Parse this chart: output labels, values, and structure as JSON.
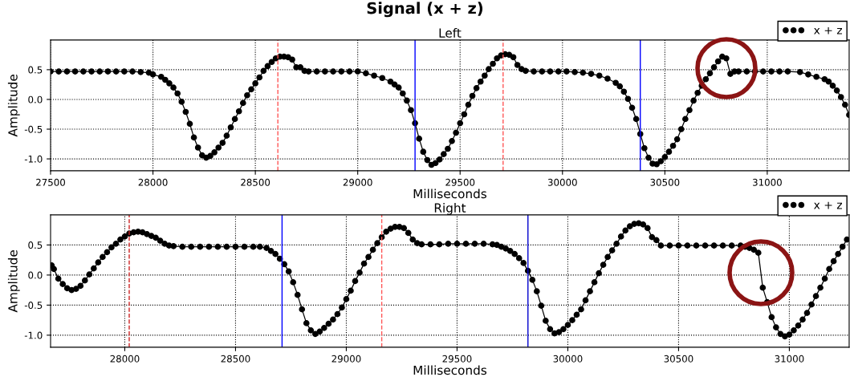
{
  "chart_data": [
    {
      "type": "line",
      "title": "Signal (x + z)",
      "subtitle": "Left",
      "xlabel": "Milliseconds",
      "ylabel": "Amplitude",
      "marker": "circle",
      "line_style": "solid",
      "grid": true,
      "legend": "top right",
      "xlim": [
        27500,
        31400
      ],
      "xticks": [
        27500,
        28000,
        28500,
        29000,
        29500,
        30000,
        30500,
        31000
      ],
      "ylim": [
        -1.2,
        1.0
      ],
      "yticks": [
        {
          "value": -1.0,
          "label": "-1.0"
        },
        {
          "value": -0.5,
          "label": "-0.5"
        },
        {
          "value": 0.0,
          "label": "0.0"
        },
        {
          "value": 0.5,
          "label": "0.5"
        }
      ],
      "ref_lines": [
        {
          "axis": "x",
          "value": 28610,
          "color": "#ff5555",
          "line_style": "dashed"
        },
        {
          "axis": "x",
          "value": 29280,
          "color": "#0000ff",
          "line_style": "solid"
        },
        {
          "axis": "x",
          "value": 29710,
          "color": "#ff5555",
          "line_style": "dashed"
        },
        {
          "axis": "x",
          "value": 30380,
          "color": "#0000ff",
          "line_style": "solid"
        }
      ],
      "series": [
        {
          "name": "x + z",
          "color": "#000000",
          "x": [
            27500,
            27540,
            27580,
            27620,
            27660,
            27700,
            27740,
            27780,
            27820,
            27860,
            27900,
            27940,
            27980,
            28000,
            28040,
            28060,
            28080,
            28100,
            28120,
            28140,
            28160,
            28180,
            28200,
            28220,
            28240,
            28260,
            28280,
            28300,
            28320,
            28340,
            28360,
            28380,
            28400,
            28420,
            28440,
            28460,
            28480,
            28500,
            28520,
            28540,
            28560,
            28580,
            28600,
            28620,
            28640,
            28660,
            28680,
            28700,
            28720,
            28740,
            28760,
            28800,
            28840,
            28880,
            28920,
            28960,
            29000,
            29040,
            29080,
            29120,
            29160,
            29180,
            29200,
            29220,
            29240,
            29260,
            29280,
            29300,
            29320,
            29340,
            29360,
            29380,
            29400,
            29420,
            29440,
            29460,
            29480,
            29500,
            29520,
            29540,
            29560,
            29580,
            29600,
            29620,
            29640,
            29660,
            29680,
            29700,
            29720,
            29740,
            29760,
            29780,
            29800,
            29820,
            29860,
            29900,
            29940,
            29980,
            30020,
            30060,
            30100,
            30140,
            30180,
            30220,
            30260,
            30280,
            30300,
            30320,
            30340,
            30360,
            30380,
            30400,
            30420,
            30440,
            30460,
            30480,
            30500,
            30520,
            30540,
            30560,
            30580,
            30600,
            30620,
            30640,
            30660,
            30680,
            30700,
            30720,
            30740,
            30760,
            30780,
            30800,
            30820,
            30840,
            30860,
            30900,
            30940,
            30980,
            31020,
            31060,
            31100,
            31160,
            31200,
            31240,
            31280,
            31300,
            31320,
            31340,
            31360,
            31380,
            31400
          ],
          "values": [
            0.47,
            0.47,
            0.47,
            0.47,
            0.47,
            0.47,
            0.47,
            0.47,
            0.47,
            0.47,
            0.47,
            0.46,
            0.45,
            0.42,
            0.38,
            0.33,
            0.27,
            0.2,
            0.1,
            -0.04,
            -0.21,
            -0.41,
            -0.64,
            -0.81,
            -0.94,
            -0.98,
            -0.95,
            -0.89,
            -0.81,
            -0.73,
            -0.61,
            -0.47,
            -0.33,
            -0.2,
            -0.06,
            0.07,
            0.17,
            0.27,
            0.37,
            0.48,
            0.56,
            0.63,
            0.69,
            0.72,
            0.72,
            0.71,
            0.67,
            0.54,
            0.54,
            0.48,
            0.47,
            0.47,
            0.47,
            0.47,
            0.47,
            0.47,
            0.47,
            0.44,
            0.4,
            0.36,
            0.3,
            0.25,
            0.2,
            0.1,
            -0.02,
            -0.18,
            -0.4,
            -0.66,
            -0.88,
            -1.02,
            -1.1,
            -1.07,
            -1.01,
            -0.92,
            -0.83,
            -0.7,
            -0.56,
            -0.4,
            -0.25,
            -0.09,
            0.06,
            0.19,
            0.3,
            0.4,
            0.51,
            0.6,
            0.69,
            0.74,
            0.76,
            0.75,
            0.71,
            0.58,
            0.51,
            0.48,
            0.47,
            0.47,
            0.47,
            0.47,
            0.47,
            0.46,
            0.45,
            0.43,
            0.4,
            0.35,
            0.28,
            0.22,
            0.13,
            0.01,
            -0.14,
            -0.33,
            -0.58,
            -0.82,
            -0.98,
            -1.08,
            -1.09,
            -1.04,
            -0.97,
            -0.88,
            -0.78,
            -0.67,
            -0.5,
            -0.33,
            -0.18,
            -0.02,
            0.11,
            0.23,
            0.34,
            0.44,
            0.54,
            0.64,
            0.72,
            0.69,
            0.43,
            0.47,
            0.47,
            0.47,
            0.47,
            0.47,
            0.47,
            0.47,
            0.47,
            0.46,
            0.42,
            0.38,
            0.34,
            0.3,
            0.23,
            0.15,
            0.04,
            -0.09,
            -0.26
          ]
        }
      ]
    },
    {
      "type": "line",
      "subtitle": "Right",
      "xlabel": "Milliseconds",
      "ylabel": "Amplitude",
      "marker": "circle",
      "line_style": "solid",
      "grid": true,
      "legend": "top right",
      "xlim": [
        27665,
        31270
      ],
      "xticks": [
        28000,
        28500,
        29000,
        29500,
        30000,
        30500,
        31000
      ],
      "ylim": [
        -1.2,
        1.0
      ],
      "yticks": [
        {
          "value": -1.0,
          "label": "-1.0"
        },
        {
          "value": -0.5,
          "label": "-0.5"
        },
        {
          "value": 0.0,
          "label": "0.0"
        },
        {
          "value": 0.5,
          "label": "0.5"
        }
      ],
      "ref_lines": [
        {
          "axis": "x",
          "value": 28020,
          "color": "#cc2222",
          "line_style": "dashed"
        },
        {
          "axis": "x",
          "value": 28710,
          "color": "#0000ff",
          "line_style": "solid"
        },
        {
          "axis": "x",
          "value": 29160,
          "color": "#ff5555",
          "line_style": "dashed"
        },
        {
          "axis": "x",
          "value": 29820,
          "color": "#0000cc",
          "line_style": "solid"
        }
      ],
      "series": [
        {
          "name": "x + z",
          "color": "#000000",
          "x": [
            27670,
            27680,
            27700,
            27720,
            27740,
            27760,
            27780,
            27800,
            27820,
            27840,
            27860,
            27880,
            27900,
            27920,
            27940,
            27960,
            27980,
            28000,
            28020,
            28040,
            28060,
            28080,
            28100,
            28120,
            28140,
            28160,
            28180,
            28200,
            28220,
            28260,
            28300,
            28340,
            28380,
            28420,
            28460,
            28500,
            28540,
            28580,
            28610,
            28640,
            28660,
            28680,
            28700,
            28720,
            28740,
            28760,
            28780,
            28800,
            28820,
            28840,
            28860,
            28880,
            28900,
            28920,
            28940,
            28960,
            28980,
            29000,
            29020,
            29040,
            29060,
            29080,
            29100,
            29120,
            29140,
            29160,
            29180,
            29200,
            29220,
            29240,
            29260,
            29280,
            29300,
            29320,
            29340,
            29380,
            29420,
            29460,
            29500,
            29540,
            29580,
            29620,
            29660,
            29680,
            29700,
            29720,
            29740,
            29760,
            29780,
            29800,
            29820,
            29840,
            29860,
            29880,
            29900,
            29920,
            29940,
            29960,
            29980,
            30000,
            30020,
            30040,
            30060,
            30080,
            30100,
            30120,
            30140,
            30160,
            30180,
            30200,
            30220,
            30240,
            30260,
            30280,
            30300,
            30320,
            30340,
            30360,
            30380,
            30400,
            30420,
            30460,
            30500,
            30540,
            30580,
            30620,
            30660,
            30700,
            30740,
            30780,
            30800,
            30820,
            30840,
            30860,
            30880,
            30900,
            30920,
            30940,
            30960,
            30980,
            31000,
            31020,
            31040,
            31060,
            31080,
            31100,
            31120,
            31140,
            31160,
            31180,
            31200,
            31220,
            31240,
            31260
          ],
          "values": [
            0.16,
            0.1,
            -0.06,
            -0.15,
            -0.22,
            -0.25,
            -0.23,
            -0.18,
            -0.09,
            0.01,
            0.11,
            0.21,
            0.3,
            0.38,
            0.46,
            0.52,
            0.59,
            0.64,
            0.69,
            0.71,
            0.72,
            0.71,
            0.68,
            0.65,
            0.62,
            0.57,
            0.52,
            0.49,
            0.48,
            0.47,
            0.47,
            0.47,
            0.47,
            0.47,
            0.47,
            0.47,
            0.47,
            0.47,
            0.47,
            0.45,
            0.4,
            0.35,
            0.27,
            0.18,
            0.06,
            -0.12,
            -0.33,
            -0.57,
            -0.8,
            -0.92,
            -0.98,
            -0.94,
            -0.88,
            -0.81,
            -0.74,
            -0.65,
            -0.54,
            -0.4,
            -0.26,
            -0.1,
            0.04,
            0.19,
            0.3,
            0.42,
            0.53,
            0.63,
            0.72,
            0.77,
            0.8,
            0.8,
            0.78,
            0.7,
            0.59,
            0.53,
            0.51,
            0.51,
            0.51,
            0.52,
            0.52,
            0.52,
            0.52,
            0.52,
            0.51,
            0.5,
            0.47,
            0.44,
            0.4,
            0.35,
            0.28,
            0.2,
            0.07,
            -0.08,
            -0.27,
            -0.51,
            -0.76,
            -0.9,
            -0.97,
            -0.95,
            -0.9,
            -0.83,
            -0.75,
            -0.66,
            -0.57,
            -0.42,
            -0.27,
            -0.12,
            0.03,
            0.17,
            0.3,
            0.41,
            0.52,
            0.64,
            0.74,
            0.81,
            0.85,
            0.86,
            0.84,
            0.78,
            0.63,
            0.58,
            0.49,
            0.49,
            0.49,
            0.49,
            0.49,
            0.49,
            0.49,
            0.49,
            0.49,
            0.49,
            0.47,
            0.45,
            0.42,
            0.37,
            -0.21,
            -0.45,
            -0.7,
            -0.87,
            -0.98,
            -1.02,
            -0.99,
            -0.92,
            -0.84,
            -0.74,
            -0.63,
            -0.49,
            -0.35,
            -0.21,
            -0.06,
            0.1,
            0.23,
            0.35,
            0.47,
            0.59
          ]
        }
      ]
    }
  ]
}
